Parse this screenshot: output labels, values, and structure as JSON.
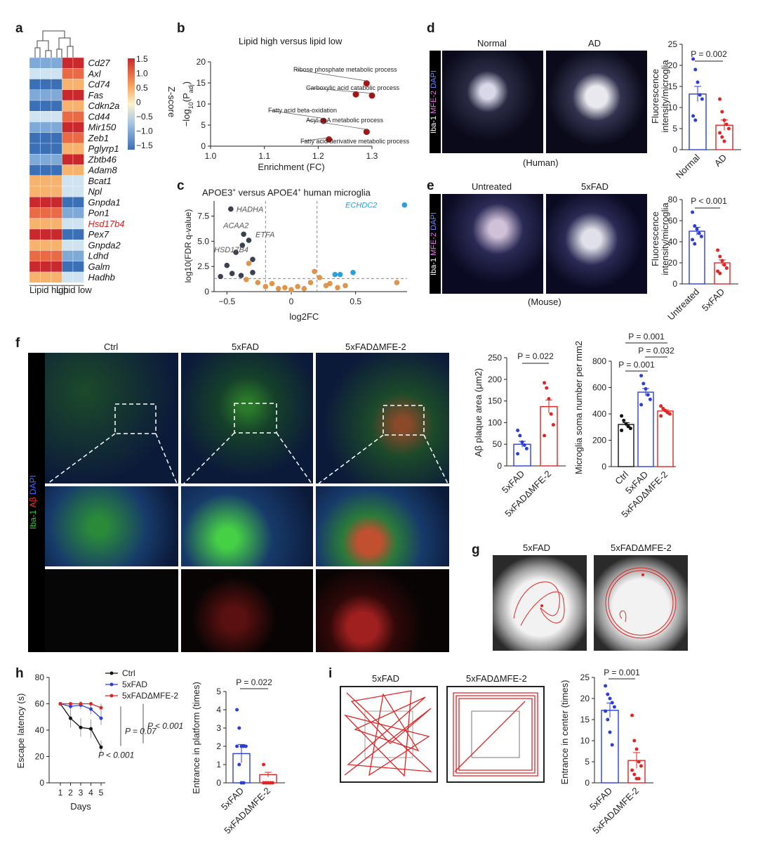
{
  "panels": {
    "a": {
      "label": "a",
      "genes": [
        "Cd27",
        "Axl",
        "Cd74",
        "Fas",
        "Cdkn2a",
        "Cd44",
        "Mir150",
        "Zeb1",
        "Pglyrp1",
        "Zbtb46",
        "Adam8",
        "Bcat1",
        "Npl",
        "Gnpda1",
        "Pon1",
        "Hsd17b4",
        "Pex7",
        "Gnpda2",
        "Ldhd",
        "Galm",
        "Hadhb"
      ],
      "highlight_gene": "Hsd17b4",
      "groups": [
        "Lipid high",
        "Lipid low"
      ],
      "colorbar_title": "Z-score",
      "colorbar_ticks": [
        "1.5",
        "1.0",
        "0.5",
        "0",
        "−0.5",
        "−1.0",
        "−1.5"
      ]
    },
    "b": {
      "label": "b",
      "title": "Lipid high versus lipid low",
      "ylabel": "−log10(Padj)",
      "xlabel": "Enrichment (FC)",
      "annotations": [
        "Ribose phosphate metabolic process",
        "Carboxylic acid catabolic process",
        "Fatty acid beta-oxidation",
        "Acyl-coA metabolic process",
        "Fatty acid derivative metabolic process"
      ]
    },
    "c": {
      "label": "c",
      "title": "APOE3+ versus APOE4+ human microglia",
      "ylabel": "log10(FDR q-value)",
      "xlabel": "log2FC",
      "gene_labels": [
        "HADHA",
        "ACAA2",
        "ETFA",
        "HSD17B4",
        "ECHDC2"
      ]
    },
    "d": {
      "label": "d",
      "image_titles": [
        "Normal",
        "AD"
      ],
      "stain": "Iba-1 MFE-2 DAPI",
      "caption": "(Human)",
      "ylabel": "Fluorescence intensity/microglia",
      "pvalue": "P = 0.002",
      "categories": [
        "Normal",
        "AD"
      ]
    },
    "e": {
      "label": "e",
      "image_titles": [
        "Untreated",
        "5xFAD"
      ],
      "stain": "Iba-1 MFE-2 DAPI",
      "caption": "(Mouse)",
      "ylabel": "Fluorescence intensity/microglia",
      "pvalue": "P < 0.001",
      "categories": [
        "Untreated",
        "5xFAD"
      ]
    },
    "f": {
      "label": "f",
      "image_titles": [
        "Ctrl",
        "5xFAD",
        "5xFADΔMFE-2"
      ],
      "stain": "Iba-1 Aβ DAPI",
      "plot1_ylabel": "Aβ plaque area (μm2)",
      "plot1_pvalue": "P = 0.022",
      "plot1_categories": [
        "5xFAD",
        "5xFADΔMFE-2"
      ],
      "plot2_ylabel": "Microglia soma number per mm2",
      "plot2_pvalues": [
        "P = 0.001",
        "P = 0.032",
        "P = 0.001"
      ],
      "plot2_categories": [
        "Ctrl",
        "5xFAD",
        "5xFADΔMFE-2"
      ]
    },
    "g": {
      "label": "g",
      "image_titles": [
        "5xFAD",
        "5xFADΔMFE-2"
      ]
    },
    "h": {
      "label": "h",
      "legend": [
        "Ctrl",
        "5xFAD",
        "5xFADΔMFE-2"
      ],
      "ylabel": "Escape latency (s)",
      "xlabel": "Days",
      "pvalues": [
        "P = 0.07",
        "P < 0.001",
        "P < 0.001"
      ],
      "bar_ylabel": "Entrance in platform (times)",
      "bar_pvalue": "P = 0.022",
      "bar_categories": [
        "5xFAD",
        "5xFADΔMFE-2"
      ]
    },
    "i": {
      "label": "i",
      "image_titles": [
        "5xFAD",
        "5xFADΔMFE-2"
      ],
      "ylabel": "Entrance in center (times)",
      "pvalue": "P = 0.001",
      "categories": [
        "5xFAD",
        "5xFADΔMFE-2"
      ]
    }
  },
  "colors": {
    "ctrl": "#111111",
    "fad": "#2b3fd8",
    "mfe": "#e02424",
    "volcano_grey": "#3a4150",
    "volcano_orange": "#e0954a",
    "volcano_blue": "#2ba0d8",
    "b_points": "#a31515"
  },
  "chart_data": [
    {
      "id": "b",
      "type": "scatter",
      "title": "Lipid high versus lipid low",
      "xlabel": "Enrichment (FC)",
      "ylabel": "−log10(Padj)",
      "xlim": [
        1.0,
        1.3
      ],
      "ylim": [
        0,
        20
      ],
      "xticks": [
        1.0,
        1.1,
        1.2,
        1.3
      ],
      "yticks": [
        0,
        5,
        10,
        15,
        20
      ],
      "points": [
        {
          "x": 1.29,
          "y": 14.9,
          "label": "Ribose phosphate metabolic process"
        },
        {
          "x": 1.27,
          "y": 12.3
        },
        {
          "x": 1.3,
          "y": 12.0,
          "label": "Carboxylic acid catabolic process"
        },
        {
          "x": 1.21,
          "y": 6.0,
          "label": "Fatty acid beta-oxidation"
        },
        {
          "x": 1.29,
          "y": 3.4,
          "label": "Acyl-coA metabolic process"
        },
        {
          "x": 1.22,
          "y": 1.6,
          "label": "Fatty acid derivative metabolic process"
        }
      ]
    },
    {
      "id": "c",
      "type": "scatter",
      "title": "APOE3+ versus APOE4+ human microglia",
      "xlabel": "log2FC",
      "ylabel": "log10(FDR q-value)",
      "xlim": [
        -0.6,
        0.9
      ],
      "ylim": [
        0,
        9
      ],
      "xticks": [
        -0.5,
        0,
        0.5
      ],
      "yticks": [
        0,
        2.5,
        5.0,
        7.5
      ],
      "points": [
        {
          "x": -0.47,
          "y": 8.2,
          "g": "grey",
          "label": "HADHA"
        },
        {
          "x": -0.37,
          "y": 5.7,
          "g": "grey",
          "label": "ACAA2"
        },
        {
          "x": -0.33,
          "y": 5.1,
          "g": "grey",
          "label": "ETFA"
        },
        {
          "x": -0.38,
          "y": 4.6,
          "g": "grey",
          "label": "HSD17B4"
        },
        {
          "x": -0.43,
          "y": 3.9,
          "g": "grey"
        },
        {
          "x": -0.3,
          "y": 3.2,
          "g": "grey"
        },
        {
          "x": -0.5,
          "y": 2.6,
          "g": "grey"
        },
        {
          "x": -0.46,
          "y": 1.8,
          "g": "grey"
        },
        {
          "x": -0.39,
          "y": 1.6,
          "g": "grey"
        },
        {
          "x": -0.55,
          "y": 1.5,
          "g": "grey"
        },
        {
          "x": -0.3,
          "y": 1.9,
          "g": "grey"
        },
        {
          "x": -0.33,
          "y": 2.8,
          "g": "orange"
        },
        {
          "x": -0.35,
          "y": 1.2,
          "g": "orange"
        },
        {
          "x": -0.26,
          "y": 0.9,
          "g": "orange"
        },
        {
          "x": -0.2,
          "y": 0.5,
          "g": "orange"
        },
        {
          "x": -0.15,
          "y": 0.8,
          "g": "orange"
        },
        {
          "x": -0.1,
          "y": 0.3,
          "g": "orange"
        },
        {
          "x": -0.05,
          "y": 0.4,
          "g": "orange"
        },
        {
          "x": 0.0,
          "y": 0.2,
          "g": "orange"
        },
        {
          "x": 0.05,
          "y": 0.5,
          "g": "orange"
        },
        {
          "x": 0.1,
          "y": 0.3,
          "g": "orange"
        },
        {
          "x": 0.15,
          "y": 0.9,
          "g": "orange"
        },
        {
          "x": 0.18,
          "y": 2.0,
          "g": "orange"
        },
        {
          "x": 0.22,
          "y": 1.4,
          "g": "orange"
        },
        {
          "x": 0.27,
          "y": 0.6,
          "g": "orange"
        },
        {
          "x": 0.3,
          "y": 0.8,
          "g": "orange"
        },
        {
          "x": 0.36,
          "y": 0.4,
          "g": "orange"
        },
        {
          "x": 0.42,
          "y": 0.6,
          "g": "orange"
        },
        {
          "x": 0.82,
          "y": 0.9,
          "g": "orange"
        },
        {
          "x": 0.34,
          "y": 1.7,
          "g": "blue"
        },
        {
          "x": 0.38,
          "y": 1.7,
          "g": "blue"
        },
        {
          "x": 0.48,
          "y": 1.9,
          "g": "blue"
        },
        {
          "x": 0.88,
          "y": 8.6,
          "g": "blue",
          "label": "ECHDC2"
        }
      ]
    },
    {
      "id": "d",
      "type": "bar",
      "categories": [
        "Normal",
        "AD"
      ],
      "values": [
        13.2,
        5.8
      ],
      "ylim": [
        0,
        25
      ],
      "yticks": [
        0,
        5,
        10,
        15,
        20,
        25
      ],
      "points": [
        [
          21.5,
          19,
          16,
          13,
          12,
          8,
          7
        ],
        [
          12,
          9,
          7,
          6,
          5,
          4,
          3,
          2
        ]
      ]
    },
    {
      "id": "e",
      "type": "bar",
      "categories": [
        "Untreated",
        "5xFAD"
      ],
      "values": [
        50,
        20
      ],
      "ylim": [
        0,
        80
      ],
      "yticks": [
        0,
        20,
        40,
        60,
        80
      ],
      "points": [
        [
          68,
          55,
          52,
          48,
          45,
          42,
          38
        ],
        [
          32,
          26,
          22,
          18,
          15,
          12,
          10
        ]
      ]
    },
    {
      "id": "f1",
      "type": "bar",
      "categories": [
        "5xFAD",
        "5xFADΔMFE-2"
      ],
      "values": [
        50,
        137
      ],
      "ylim": [
        0,
        250
      ],
      "yticks": [
        0,
        50,
        100,
        150,
        200,
        250
      ],
      "points": [
        [
          82,
          70,
          55,
          48,
          40,
          28
        ],
        [
          192,
          180,
          155,
          120,
          95,
          70
        ]
      ]
    },
    {
      "id": "f2",
      "type": "bar",
      "categories": [
        "Ctrl",
        "5xFAD",
        "5xFADΔMFE-2"
      ],
      "values": [
        320,
        565,
        422
      ],
      "ylim": [
        0,
        800
      ],
      "yticks": [
        0,
        200,
        400,
        600,
        800
      ],
      "points": [
        [
          385,
          350,
          325,
          305,
          290,
          275
        ],
        [
          690,
          630,
          590,
          545,
          510,
          470
        ],
        [
          460,
          440,
          425,
          410,
          400,
          385
        ]
      ]
    },
    {
      "id": "h1",
      "type": "line",
      "x": [
        1,
        2,
        3,
        4,
        5
      ],
      "xlabel": "Days",
      "ylabel": "Escape latency (s)",
      "ylim": [
        0,
        80
      ],
      "yticks": [
        0,
        20,
        40,
        60,
        80
      ],
      "series": [
        {
          "name": "Ctrl",
          "values": [
            60,
            49,
            42,
            41,
            27
          ],
          "err": [
            0,
            7,
            7,
            7,
            5
          ]
        },
        {
          "name": "5xFAD",
          "values": [
            60,
            58,
            59,
            56,
            49
          ],
          "err": [
            0,
            2,
            3,
            4,
            5
          ]
        },
        {
          "name": "5xFADΔMFE-2",
          "values": [
            60,
            60,
            60,
            60,
            57
          ],
          "err": [
            0,
            0,
            0,
            0,
            3
          ]
        }
      ]
    },
    {
      "id": "h2",
      "type": "bar",
      "categories": [
        "5xFAD",
        "5xFADΔMFE-2"
      ],
      "values": [
        1.6,
        0.45
      ],
      "ylim": [
        0,
        5
      ],
      "yticks": [
        0,
        1,
        2,
        3,
        4,
        5
      ],
      "points": [
        [
          4,
          3,
          2,
          2,
          2,
          2,
          1,
          0,
          0
        ],
        [
          1,
          0,
          0,
          0,
          0,
          0,
          0,
          0,
          0
        ]
      ]
    },
    {
      "id": "i",
      "type": "bar",
      "categories": [
        "5xFAD",
        "5xFADΔMFE-2"
      ],
      "values": [
        17.2,
        5.3
      ],
      "ylim": [
        0,
        25
      ],
      "yticks": [
        0,
        5,
        10,
        15,
        20,
        25
      ],
      "points": [
        [
          23,
          21,
          20,
          19,
          18,
          17,
          15,
          12,
          9
        ],
        [
          16,
          10,
          8,
          5,
          4,
          3,
          2,
          1,
          1
        ]
      ]
    }
  ]
}
